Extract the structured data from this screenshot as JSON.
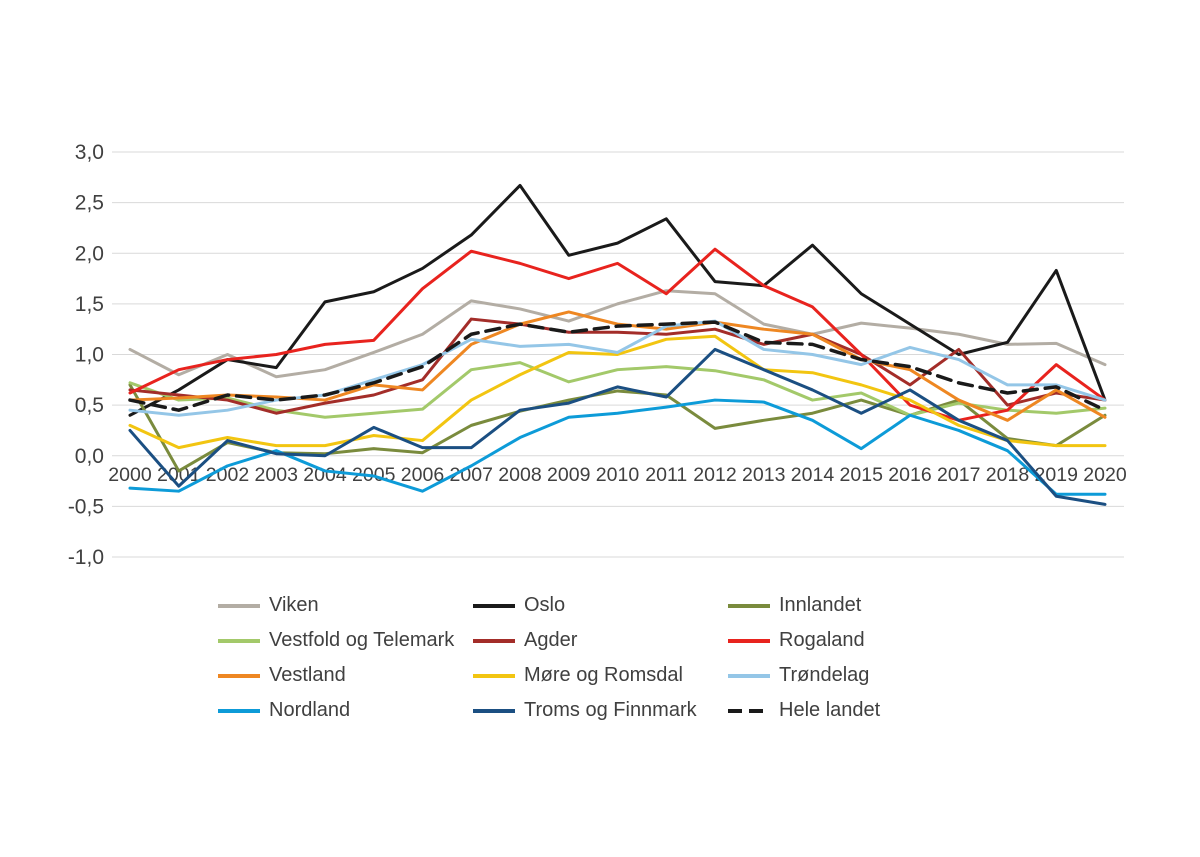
{
  "chart_data": {
    "type": "line",
    "title": "",
    "categories": [
      "2000",
      "2001",
      "2002",
      "2003",
      "2004",
      "2005",
      "2006",
      "2007",
      "2008",
      "2009",
      "2010",
      "2011",
      "2012",
      "2013",
      "2014",
      "2015",
      "2016",
      "2017",
      "2018",
      "2019",
      "2020"
    ],
    "ylim": [
      -1.0,
      3.0
    ],
    "ytick_step": 0.5,
    "ytick_labels": [
      "3,0",
      "2,5",
      "2,0",
      "1,5",
      "1,0",
      "0,5",
      "0,0",
      "-0,5",
      "-1,0"
    ],
    "grid": true,
    "legend_position": "bottom",
    "series": [
      {
        "name": "Viken",
        "color": "#b3ada4",
        "dash": false,
        "values": [
          1.05,
          0.8,
          1.0,
          0.78,
          0.85,
          1.02,
          1.2,
          1.53,
          1.45,
          1.33,
          1.5,
          1.63,
          1.6,
          1.3,
          1.2,
          1.31,
          1.26,
          1.2,
          1.1,
          1.11,
          0.9
        ]
      },
      {
        "name": "Oslo",
        "color": "#1a1a1a",
        "dash": false,
        "values": [
          0.4,
          0.65,
          0.95,
          0.87,
          1.52,
          1.62,
          1.85,
          2.18,
          2.67,
          1.98,
          2.1,
          2.34,
          1.72,
          1.68,
          2.08,
          1.6,
          1.3,
          1.0,
          1.12,
          1.83,
          0.55
        ]
      },
      {
        "name": "Innlandet",
        "color": "#7a8b3d",
        "dash": false,
        "values": [
          0.7,
          -0.15,
          0.13,
          0.03,
          0.02,
          0.07,
          0.03,
          0.3,
          0.44,
          0.55,
          0.64,
          0.6,
          0.27,
          0.35,
          0.42,
          0.55,
          0.4,
          0.55,
          0.17,
          0.1,
          0.4
        ]
      },
      {
        "name": "Vestfold og Telemark",
        "color": "#a3c96a",
        "dash": false,
        "values": [
          0.72,
          0.55,
          0.57,
          0.45,
          0.38,
          0.42,
          0.46,
          0.85,
          0.92,
          0.73,
          0.85,
          0.88,
          0.84,
          0.75,
          0.55,
          0.62,
          0.4,
          0.52,
          0.45,
          0.42,
          0.47
        ]
      },
      {
        "name": "Agder",
        "color": "#a32d29",
        "dash": false,
        "values": [
          0.65,
          0.6,
          0.55,
          0.42,
          0.52,
          0.6,
          0.75,
          1.35,
          1.3,
          1.22,
          1.22,
          1.2,
          1.25,
          1.1,
          1.2,
          1.0,
          0.7,
          1.05,
          0.5,
          0.62,
          0.55
        ]
      },
      {
        "name": "Rogaland",
        "color": "#e8231e",
        "dash": false,
        "values": [
          0.62,
          0.85,
          0.95,
          1.0,
          1.1,
          1.14,
          1.65,
          2.02,
          1.9,
          1.75,
          1.9,
          1.6,
          2.04,
          1.68,
          1.47,
          1.0,
          0.5,
          0.35,
          0.45,
          0.9,
          0.55
        ]
      },
      {
        "name": "Vestland",
        "color": "#ee8722",
        "dash": false,
        "values": [
          0.55,
          0.57,
          0.6,
          0.58,
          0.55,
          0.7,
          0.65,
          1.1,
          1.3,
          1.42,
          1.3,
          1.25,
          1.32,
          1.25,
          1.2,
          0.95,
          0.85,
          0.55,
          0.35,
          0.65,
          0.38
        ]
      },
      {
        "name": "Møre og Romsdal",
        "color": "#f2c511",
        "dash": false,
        "values": [
          0.3,
          0.08,
          0.18,
          0.1,
          0.1,
          0.2,
          0.15,
          0.55,
          0.8,
          1.02,
          1.0,
          1.15,
          1.18,
          0.85,
          0.82,
          0.7,
          0.55,
          0.3,
          0.15,
          0.1,
          0.1
        ]
      },
      {
        "name": "Trøndelag",
        "color": "#94c6e7",
        "dash": false,
        "values": [
          0.45,
          0.4,
          0.45,
          0.55,
          0.6,
          0.75,
          0.9,
          1.15,
          1.08,
          1.1,
          1.02,
          1.28,
          1.33,
          1.05,
          1.0,
          0.9,
          1.07,
          0.95,
          0.7,
          0.7,
          0.55
        ]
      },
      {
        "name": "Nordland",
        "color": "#0d9bd8",
        "dash": false,
        "values": [
          -0.32,
          -0.35,
          -0.1,
          0.05,
          -0.15,
          -0.2,
          -0.35,
          -0.1,
          0.18,
          0.38,
          0.42,
          0.48,
          0.55,
          0.53,
          0.35,
          0.07,
          0.4,
          0.25,
          0.05,
          -0.38,
          -0.38
        ]
      },
      {
        "name": "Troms og Finnmark",
        "color": "#1b4f82",
        "dash": false,
        "values": [
          0.25,
          -0.3,
          0.15,
          0.02,
          0.0,
          0.28,
          0.08,
          0.08,
          0.45,
          0.52,
          0.68,
          0.58,
          1.05,
          0.85,
          0.65,
          0.42,
          0.65,
          0.35,
          0.15,
          -0.4,
          -0.48
        ]
      },
      {
        "name": "Hele landet",
        "color": "#1a1a1a",
        "dash": true,
        "values": [
          0.55,
          0.45,
          0.6,
          0.55,
          0.6,
          0.72,
          0.88,
          1.2,
          1.3,
          1.22,
          1.28,
          1.3,
          1.32,
          1.12,
          1.1,
          0.95,
          0.88,
          0.72,
          0.62,
          0.68,
          0.45
        ]
      }
    ]
  }
}
